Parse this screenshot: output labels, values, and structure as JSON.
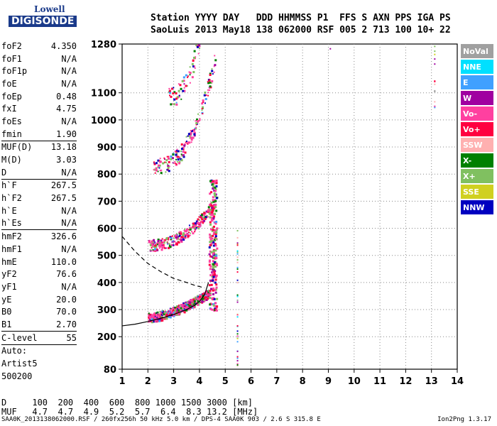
{
  "logo": {
    "line1": "Lowell",
    "line2": "DIGISONDE"
  },
  "header": {
    "line1": "Station YYYY DAY   DDD HHMMSS P1  FFS S AXN PPS IGA PS",
    "line2": "SaoLuis 2013 May18 138 062000 RSF 005 2 713 100 10+ 22"
  },
  "params": {
    "group1": [
      [
        "foF2",
        "4.350"
      ],
      [
        "foF1",
        "N/A"
      ],
      [
        "foF1p",
        "N/A"
      ],
      [
        "foE",
        "N/A"
      ],
      [
        "foEp",
        "0.48"
      ],
      [
        "fxI",
        "4.75"
      ],
      [
        "foEs",
        "N/A"
      ],
      [
        "fmin",
        "1.90"
      ]
    ],
    "group2": [
      [
        "MUF(D)",
        "13.18"
      ],
      [
        "M(D)",
        "3.03"
      ],
      [
        "D",
        "N/A"
      ]
    ],
    "group3": [
      [
        "h`F",
        "267.5"
      ],
      [
        "h`F2",
        "267.5"
      ],
      [
        "h`E",
        "N/A"
      ],
      [
        "h`Es",
        "N/A"
      ]
    ],
    "group4": [
      [
        "hmF2",
        "326.6"
      ],
      [
        "hmF1",
        "N/A"
      ],
      [
        "hmE",
        "110.0"
      ],
      [
        "yF2",
        "76.6"
      ],
      [
        "yF1",
        "N/A"
      ],
      [
        "yE",
        "20.0"
      ],
      [
        "B0",
        "70.0"
      ],
      [
        "B1",
        "2.70"
      ]
    ],
    "group5": [
      [
        "C-level",
        "55"
      ]
    ],
    "auto": [
      "Auto:",
      "Artist5",
      "500200"
    ]
  },
  "legend": [
    {
      "label": "NoVal",
      "color": "#a0a0a0"
    },
    {
      "label": "NNE",
      "color": "#00e0ff"
    },
    {
      "label": "E",
      "color": "#40a0ff"
    },
    {
      "label": "W",
      "color": "#a000a0"
    },
    {
      "label": "Vo-",
      "color": "#ff40a0"
    },
    {
      "label": "Vo+",
      "color": "#ff0040"
    },
    {
      "label": "SSW",
      "color": "#ffb0b0"
    },
    {
      "label": "X-",
      "color": "#008000"
    },
    {
      "label": "X+",
      "color": "#80c060"
    },
    {
      "label": "SSE",
      "color": "#d0d020"
    },
    {
      "label": "NNW",
      "color": "#0000c0"
    }
  ],
  "footer": {
    "distance_row": "D     100  200  400  600  800 1000 1500 3000 [km]",
    "muf_row": "MUF   4.7  4.7  4.9  5.2  5.7  6.4  8.3 13.2 [MHz]",
    "file_info": "SAA0K_2013138062000.RSF / 260fx256h 50 kHz 5.0 km / DPS-4 SAA0K 903 / 2.6 S 315.8 E",
    "version": "Ion2Png 1.3.17"
  },
  "chart_data": {
    "type": "scatter",
    "x_ticks": [
      1,
      2,
      3,
      4,
      5,
      6,
      7,
      8,
      9,
      10,
      11,
      12,
      13,
      14
    ],
    "y_ticks": [
      80,
      200,
      300,
      400,
      500,
      600,
      700,
      800,
      900,
      1000,
      1100,
      1280
    ],
    "xlim": [
      1,
      14
    ],
    "ylim": [
      80,
      1280
    ],
    "grid": true,
    "legend_position": "right",
    "traces": [
      {
        "name": "lower-profile",
        "x": [
          1.0,
          1.5,
          2.0,
          2.5,
          3.0,
          3.5,
          3.8,
          4.0,
          4.2,
          4.35
        ],
        "y": [
          240,
          246,
          256,
          268,
          282,
          300,
          315,
          330,
          355,
          400
        ]
      },
      {
        "name": "dashed-profile",
        "x": [
          1.0,
          1.5,
          2.0,
          2.5,
          3.0,
          3.5,
          3.8,
          4.0,
          4.2
        ],
        "y": [
          570,
          515,
          470,
          440,
          415,
          400,
          390,
          385,
          380
        ]
      }
    ]
  }
}
